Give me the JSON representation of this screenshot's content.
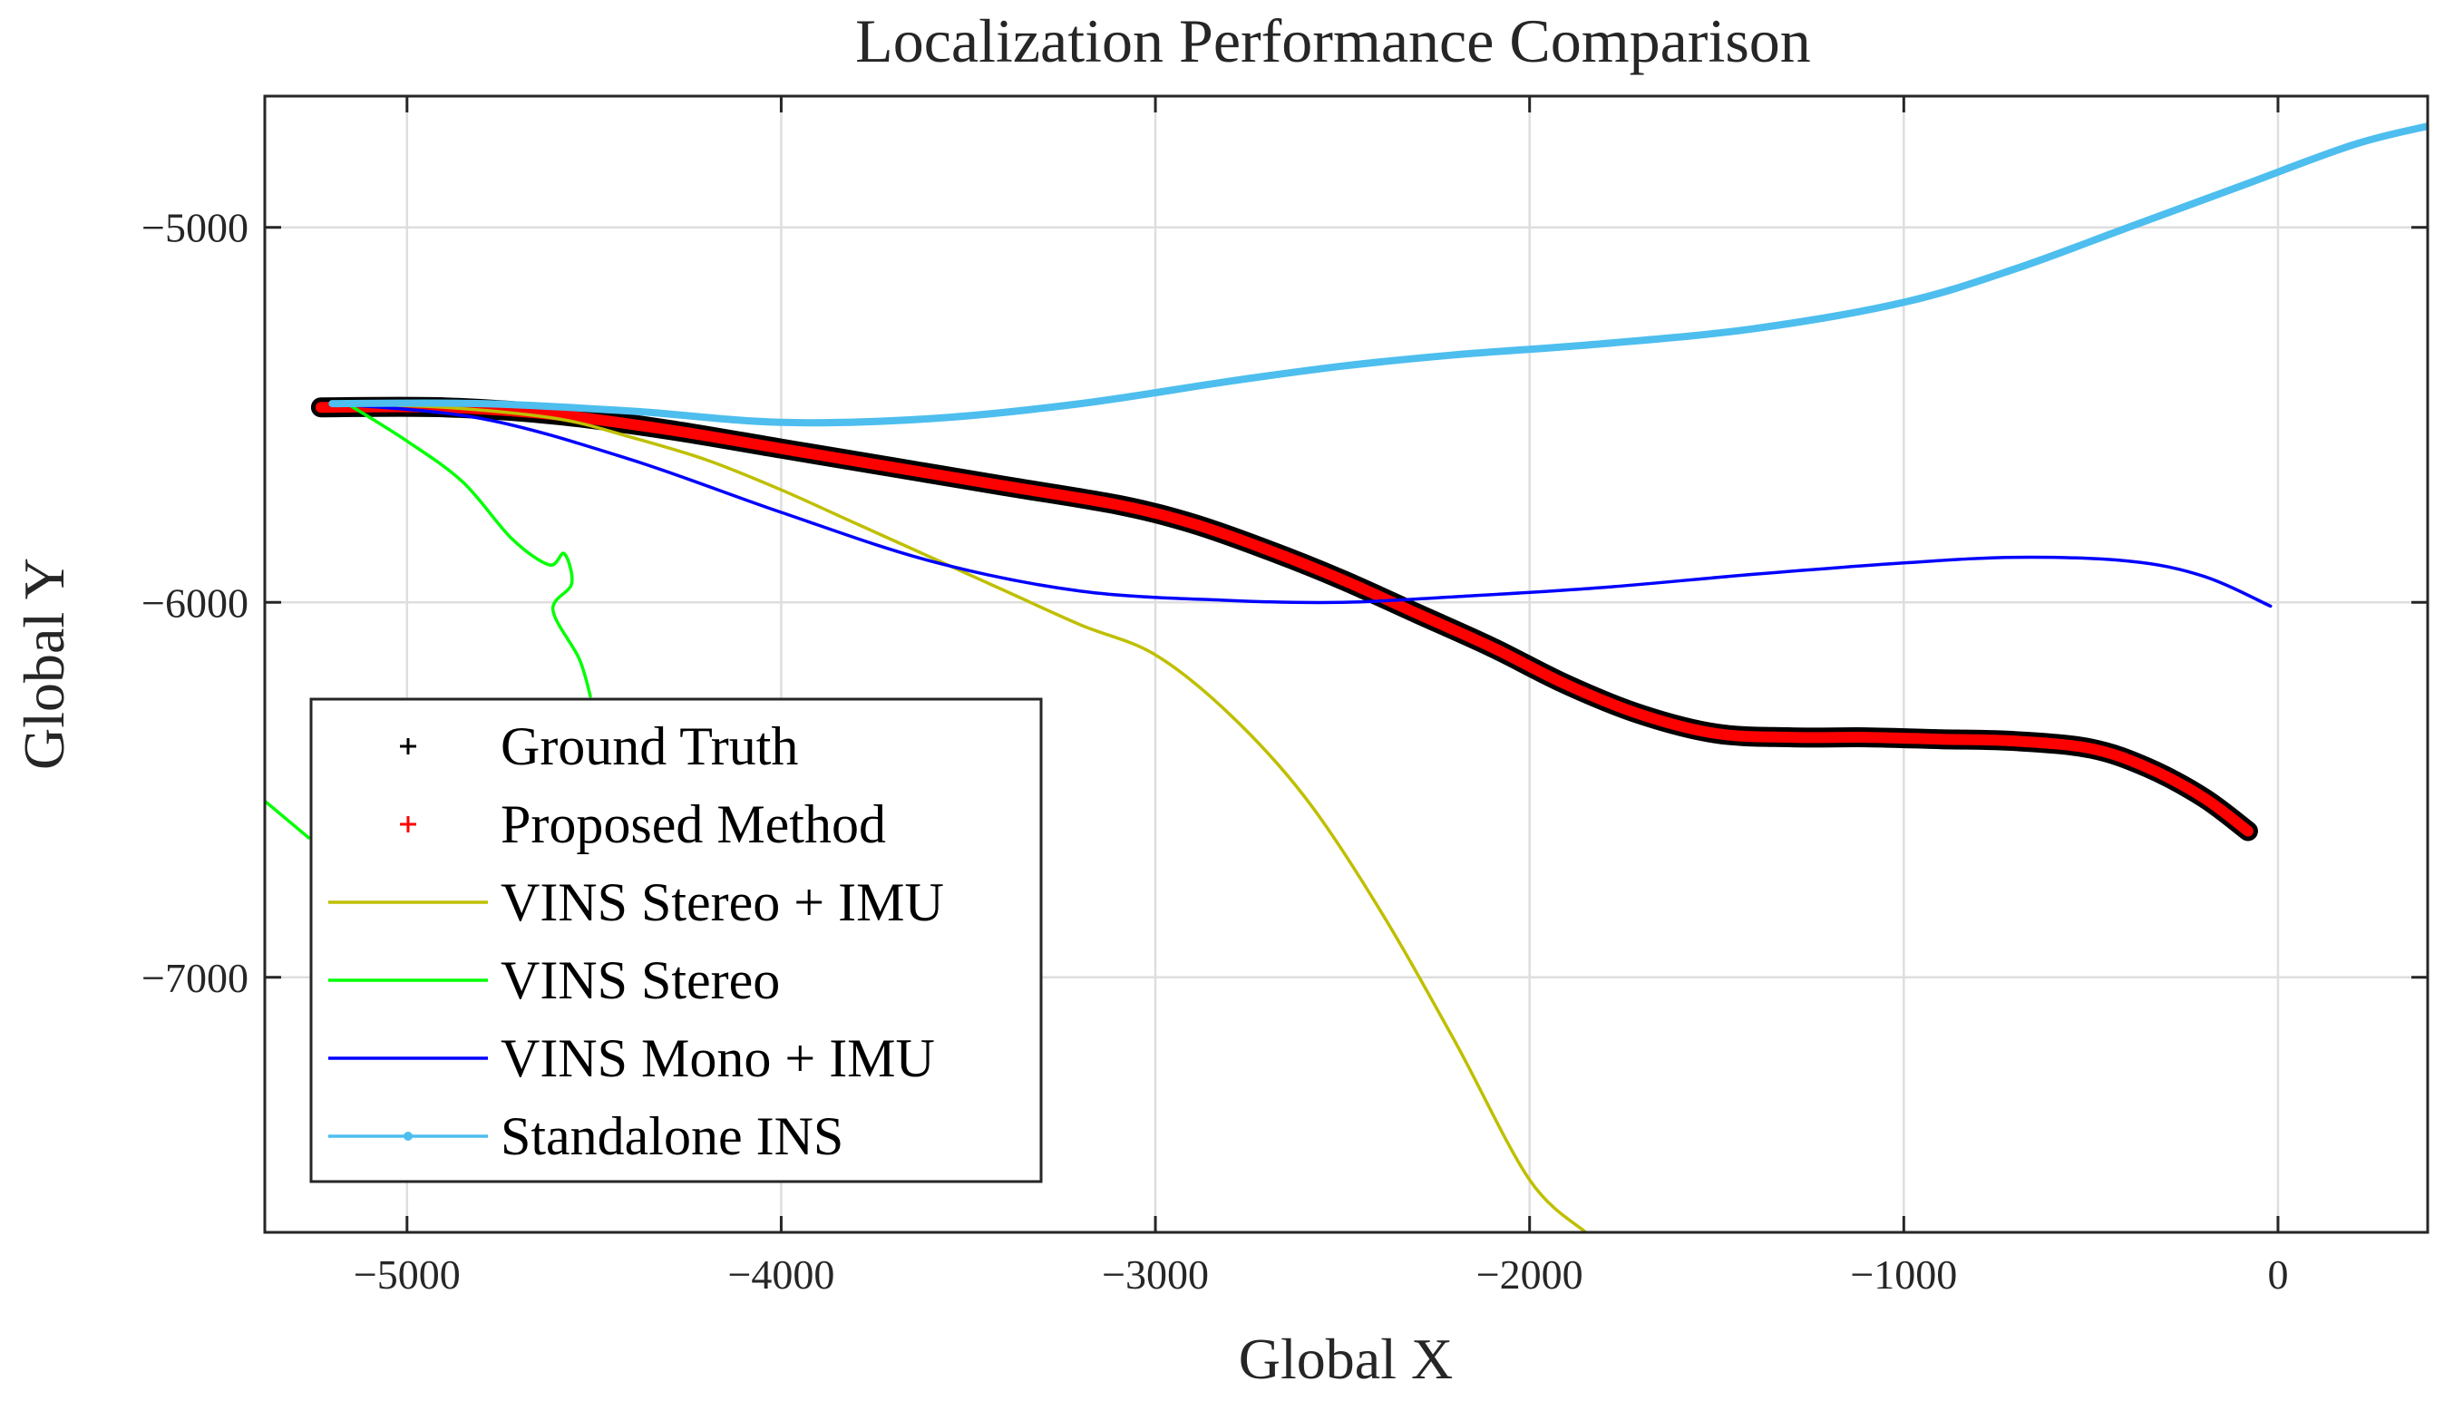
{
  "chart_data": {
    "type": "line",
    "title": "Localization Performance Comparison",
    "xlabel": "Global X",
    "ylabel": "Global Y",
    "xlim": [
      -5380,
      400
    ],
    "ylim": [
      -7680,
      -4650
    ],
    "xticks": [
      -5000,
      -4000,
      -3000,
      -2000,
      -1000,
      0
    ],
    "yticks": [
      -5000,
      -6000,
      -7000
    ],
    "xtick_labels": [
      "−5000",
      "−4000",
      "−3000",
      "−2000",
      "−1000",
      "0"
    ],
    "ytick_labels": [
      "−5000",
      "−6000",
      "−7000"
    ],
    "grid": true,
    "legend_position": "bottom-left",
    "series": [
      {
        "name": "Ground Truth",
        "style": "marker-plus",
        "color": "#000000",
        "x": [
          -5230,
          -4900,
          -4600,
          -4300,
          -4000,
          -3700,
          -3400,
          -3100,
          -2900,
          -2700,
          -2500,
          -2300,
          -2100,
          -1900,
          -1700,
          -1500,
          -1300,
          -1100,
          -900,
          -700,
          -500,
          -350,
          -200,
          -80
        ],
        "y": [
          -5480,
          -5480,
          -5500,
          -5540,
          -5590,
          -5640,
          -5690,
          -5740,
          -5790,
          -5860,
          -5940,
          -6030,
          -6120,
          -6220,
          -6300,
          -6350,
          -6360,
          -6360,
          -6365,
          -6370,
          -6390,
          -6440,
          -6520,
          -6610
        ]
      },
      {
        "name": "Proposed Method",
        "style": "marker-plus",
        "color": "#ff0000",
        "x": [
          -5230,
          -4900,
          -4600,
          -4300,
          -4000,
          -3700,
          -3400,
          -3100,
          -2900,
          -2700,
          -2500,
          -2300,
          -2100,
          -1900,
          -1700,
          -1500,
          -1300,
          -1100,
          -900,
          -700,
          -500,
          -350,
          -200,
          -80
        ],
        "y": [
          -5480,
          -5480,
          -5500,
          -5540,
          -5590,
          -5640,
          -5690,
          -5740,
          -5790,
          -5860,
          -5940,
          -6030,
          -6120,
          -6220,
          -6300,
          -6350,
          -6360,
          -6360,
          -6365,
          -6370,
          -6390,
          -6440,
          -6520,
          -6610
        ]
      },
      {
        "name": "VINS Stereo + IMU",
        "style": "line",
        "color": "#bfbf00",
        "x": [
          -5200,
          -4900,
          -4600,
          -4400,
          -4200,
          -4000,
          -3800,
          -3600,
          -3400,
          -3200,
          -3000,
          -2800,
          -2600,
          -2400,
          -2200,
          -2000,
          -1850
        ],
        "y": [
          -5470,
          -5480,
          -5510,
          -5560,
          -5620,
          -5700,
          -5790,
          -5880,
          -5970,
          -6060,
          -6140,
          -6300,
          -6520,
          -6820,
          -7170,
          -7540,
          -7680
        ]
      },
      {
        "name": "VINS Stereo",
        "style": "line",
        "color": "#00ff00",
        "x": [
          -5160,
          -5000,
          -4850,
          -4720,
          -4620,
          -4580,
          -4560,
          -4610,
          -4540,
          -4510
        ],
        "y": [
          -5470,
          -5570,
          -5680,
          -5830,
          -5900,
          -5870,
          -5950,
          -6020,
          -6150,
          -6250
        ]
      },
      {
        "name": "VINS Mono + IMU",
        "style": "line",
        "color": "#0000ff",
        "x": [
          -5200,
          -4800,
          -4400,
          -4000,
          -3600,
          -3200,
          -2800,
          -2500,
          -2200,
          -1800,
          -1400,
          -1000,
          -700,
          -400,
          -200,
          -20
        ],
        "y": [
          -5470,
          -5510,
          -5620,
          -5760,
          -5890,
          -5970,
          -5995,
          -6000,
          -5985,
          -5960,
          -5925,
          -5895,
          -5880,
          -5890,
          -5930,
          -6010
        ]
      },
      {
        "name": "Standalone INS",
        "style": "line-dot",
        "color": "#4dbeee",
        "x": [
          -5200,
          -4800,
          -4400,
          -4000,
          -3600,
          -3200,
          -2800,
          -2500,
          -2200,
          -1800,
          -1400,
          -1000,
          -700,
          -400,
          -100,
          200,
          400
        ],
        "y": [
          -5470,
          -5470,
          -5490,
          -5520,
          -5510,
          -5470,
          -5410,
          -5370,
          -5340,
          -5310,
          -5270,
          -5200,
          -5110,
          -5000,
          -4890,
          -4780,
          -4730
        ]
      }
    ],
    "stray_segments": [
      {
        "series": "VINS Stereo",
        "color": "#00ff00",
        "x": [
          -5380,
          -5260
        ],
        "y": [
          -6530,
          -6630
        ]
      }
    ]
  }
}
